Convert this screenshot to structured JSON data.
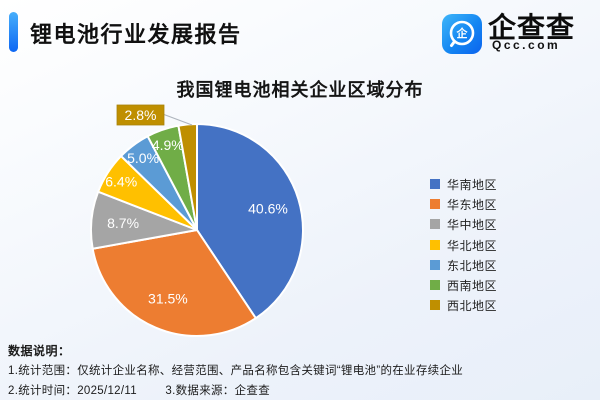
{
  "header": {
    "title": "锂电池行业发展报告"
  },
  "logo": {
    "name": "企查查",
    "domain": "Qcc.com",
    "icon_glyph": "企"
  },
  "chart_data": {
    "type": "pie",
    "title": "我国锂电池相关企业区域分布",
    "unit": "%",
    "legend_position": "right",
    "start_angle_deg": 0,
    "direction": "clockwise",
    "series": [
      {
        "label": "华南地区",
        "value": 40.6,
        "color": "#4472C4"
      },
      {
        "label": "华东地区",
        "value": 31.5,
        "color": "#ED7D31"
      },
      {
        "label": "华中地区",
        "value": 8.7,
        "color": "#A5A5A5"
      },
      {
        "label": "华北地区",
        "value": 6.4,
        "color": "#FFC000"
      },
      {
        "label": "东北地区",
        "value": 5.0,
        "color": "#5B9BD5"
      },
      {
        "label": "西南地区",
        "value": 4.9,
        "color": "#70AD47"
      },
      {
        "label": "西北地区",
        "value": 2.8,
        "color": "#BF8F00"
      }
    ]
  },
  "footnotes": {
    "heading": "数据说明：",
    "scope": "1.统计范围：仅统计企业名称、经营范围、产品名称包含关键词“锂电池”的在业存续企业",
    "stat_time": "2.统计时间：2025/12/11",
    "data_source": "3.数据来源：企查查"
  }
}
